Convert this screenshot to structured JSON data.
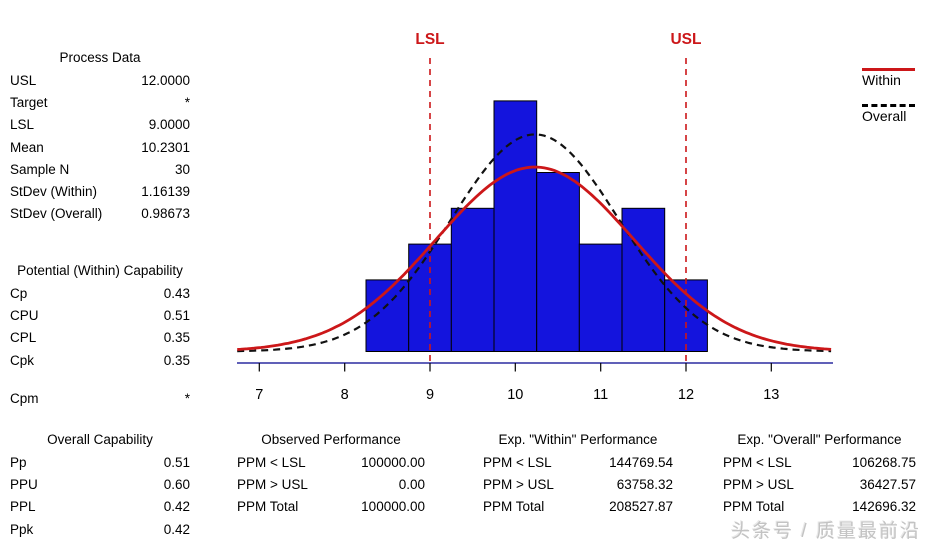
{
  "colors": {
    "bar_fill": "#1414dd",
    "bar_edge": "#000000",
    "accent_red": "#cc1719",
    "overall_black": "#111111",
    "axis_blue": "#2b2ba0",
    "tick_black": "#000000",
    "watermark_gray": "#c3c3c3"
  },
  "panels": {
    "process_data": {
      "title": "Process Data",
      "rows": [
        {
          "label": "USL",
          "value": "12.0000"
        },
        {
          "label": "Target",
          "value": "*"
        },
        {
          "label": "LSL",
          "value": "9.0000"
        },
        {
          "label": "Mean",
          "value": "10.2301"
        },
        {
          "label": "Sample N",
          "value": "30"
        },
        {
          "label": "StDev (Within)",
          "value": "1.16139"
        },
        {
          "label": "StDev (Overall)",
          "value": "0.98673"
        }
      ]
    },
    "potential": {
      "title": "Potential (Within) Capability",
      "rows": [
        {
          "label": "Cp",
          "value": "0.43"
        },
        {
          "label": "CPU",
          "value": "0.51"
        },
        {
          "label": "CPL",
          "value": "0.35"
        },
        {
          "label": "Cpk",
          "value": "0.35"
        },
        {
          "label": "Cpm",
          "value": "*",
          "gap": true
        }
      ]
    },
    "overall_capability": {
      "title": "Overall Capability",
      "rows": [
        {
          "label": "Pp",
          "value": "0.51"
        },
        {
          "label": "PPU",
          "value": "0.60"
        },
        {
          "label": "PPL",
          "value": "0.42"
        },
        {
          "label": "Ppk",
          "value": "0.42"
        }
      ]
    },
    "observed": {
      "title": "Observed Performance",
      "rows": [
        {
          "label": "PPM < LSL",
          "value": "100000.00"
        },
        {
          "label": "PPM > USL",
          "value": "0.00"
        },
        {
          "label": "PPM Total",
          "value": "100000.00"
        }
      ]
    },
    "exp_within": {
      "title": "Exp. \"Within\" Performance",
      "rows": [
        {
          "label": "PPM < LSL",
          "value": "144769.54"
        },
        {
          "label": "PPM > USL",
          "value": "63758.32"
        },
        {
          "label": "PPM Total",
          "value": "208527.87"
        }
      ]
    },
    "exp_overall": {
      "title": "Exp. \"Overall\" Performance",
      "rows": [
        {
          "label": "PPM < LSL",
          "value": "106268.75"
        },
        {
          "label": "PPM > USL",
          "value": "36427.57"
        },
        {
          "label": "PPM Total",
          "value": "142696.32"
        }
      ]
    }
  },
  "chart_data": {
    "type": "bar",
    "subtype": "capability-histogram",
    "bin_centers": [
      8.5,
      9.0,
      9.5,
      10.0,
      10.5,
      11.0,
      11.5,
      12.0
    ],
    "bin_edges": [
      8.25,
      8.75,
      9.25,
      9.75,
      10.25,
      10.75,
      11.25,
      11.75,
      12.25
    ],
    "bin_width": 0.5,
    "counts": [
      2,
      3,
      4,
      7,
      5,
      3,
      4,
      2
    ],
    "sample_n": 30,
    "x_ticks": [
      7,
      8,
      9,
      10,
      11,
      12,
      13
    ],
    "xlim": [
      6.74,
      13.72
    ],
    "ylim": [
      0,
      8.2
    ],
    "ylabel": "frequency (implicit)",
    "lsl": 9.0,
    "usl": 12.0,
    "lsl_label": "LSL",
    "usl_label": "USL",
    "grid": false,
    "legend_position": "top-right",
    "curves": [
      {
        "name": "Within",
        "mean": 10.2301,
        "stdev": 1.16139,
        "style": "solid"
      },
      {
        "name": "Overall",
        "mean": 10.2301,
        "stdev": 0.98673,
        "style": "dashed"
      }
    ]
  },
  "watermark": "头条号 / 质量最前沿"
}
